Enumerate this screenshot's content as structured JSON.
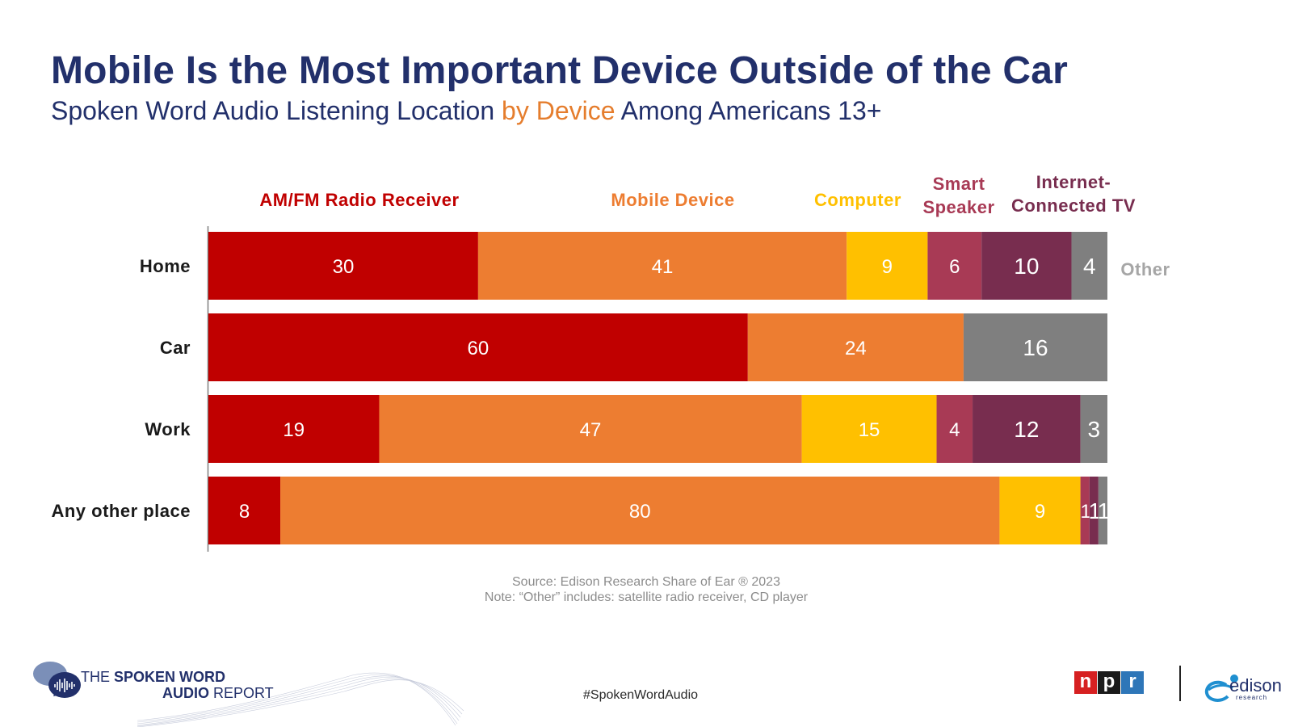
{
  "header": {
    "title": "Mobile Is the Most Important Device Outside of the Car",
    "subtitle_pre": "Spoken Word Audio Listening Location ",
    "subtitle_hl": "by Device",
    "subtitle_post": " Among Americans 13+"
  },
  "chart_data": {
    "type": "bar",
    "orientation": "horizontal",
    "stacked": true,
    "categories": [
      "Home",
      "Car",
      "Work",
      "Any other place"
    ],
    "xlim": [
      0,
      100
    ],
    "series": [
      {
        "name": "AM/FM Radio Receiver",
        "label_lines": [
          "AM/FM Radio Receiver"
        ],
        "color": "#c00000",
        "label_color": "#c00000",
        "values": [
          30,
          60,
          19,
          8
        ],
        "value_color": "#ffffff"
      },
      {
        "name": "Mobile Device",
        "label_lines": [
          "Mobile Device"
        ],
        "color": "#ed7d31",
        "label_color": "#ed7d31",
        "values": [
          41,
          24,
          47,
          80
        ],
        "value_color": "#ffffff"
      },
      {
        "name": "Computer",
        "label_lines": [
          "Computer"
        ],
        "color": "#ffc000",
        "label_color": "#ffc000",
        "values": [
          9,
          0,
          15,
          9
        ],
        "value_color": "#ffffff"
      },
      {
        "name": "Smart Speaker",
        "label_lines": [
          "Smart",
          "Speaker"
        ],
        "color": "#a83a55",
        "label_color": "#a83a55",
        "values": [
          6,
          0,
          4,
          1
        ],
        "value_color": "#ffffff"
      },
      {
        "name": "Internet-Connected TV",
        "label_lines": [
          "Internet-",
          "Connected TV"
        ],
        "color": "#782d4f",
        "label_color": "#782d4f",
        "values": [
          10,
          0,
          12,
          1
        ],
        "value_color": "#ffffff"
      },
      {
        "name": "Other",
        "label_lines": [
          "Other"
        ],
        "color": "#7f7f7f",
        "label_color": "#a6a6a6",
        "values": [
          4,
          16,
          3,
          1
        ],
        "value_color": "#ffffff"
      }
    ]
  },
  "notes": {
    "source": "Source: Edison Research Share of Ear ® 2023",
    "note": "Note: “Other” includes: satellite radio receiver, CD player"
  },
  "footer": {
    "hashtag": "#SpokenWordAudio",
    "report_line1_pre": "THE ",
    "report_line1_bold": "SPOKEN WORD",
    "report_line2_bold": "AUDIO",
    "report_line2_post": " REPORT",
    "npr_letters": [
      "n",
      "p",
      "r"
    ],
    "npr_colors": [
      "#d62021",
      "#1a1a1a",
      "#2e76b8"
    ],
    "edison_word": "edison",
    "edison_sub": "research"
  }
}
